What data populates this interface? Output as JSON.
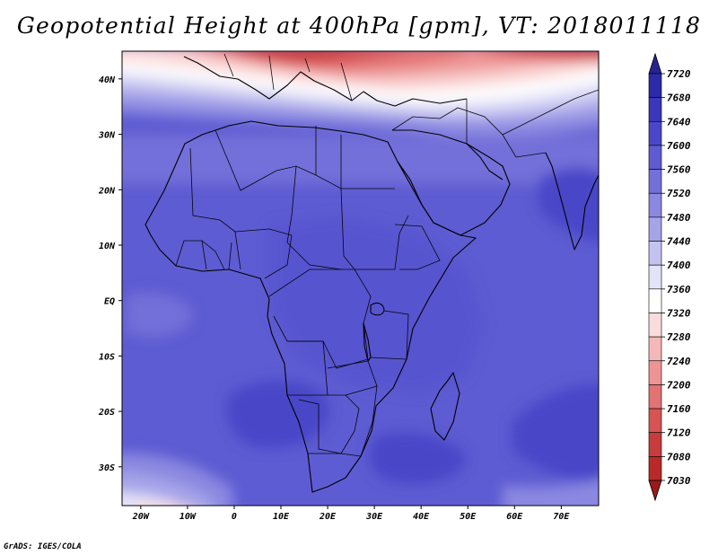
{
  "title": "Geopotential Height at 400hPa [gpm], VT: 2018011118",
  "credit": "GrADS: IGES/COLA",
  "map": {
    "lon_range": [
      -24,
      78
    ],
    "lat_range": [
      -37,
      45
    ],
    "lon_ticks": [
      {
        "value": -20,
        "label": "20W"
      },
      {
        "value": -10,
        "label": "10W"
      },
      {
        "value": 0,
        "label": "0"
      },
      {
        "value": 10,
        "label": "10E"
      },
      {
        "value": 20,
        "label": "20E"
      },
      {
        "value": 30,
        "label": "30E"
      },
      {
        "value": 40,
        "label": "40E"
      },
      {
        "value": 50,
        "label": "50E"
      },
      {
        "value": 60,
        "label": "60E"
      },
      {
        "value": 70,
        "label": "70E"
      }
    ],
    "lat_ticks": [
      {
        "value": 40,
        "label": "40N"
      },
      {
        "value": 30,
        "label": "30N"
      },
      {
        "value": 20,
        "label": "20N"
      },
      {
        "value": 10,
        "label": "10N"
      },
      {
        "value": 0,
        "label": "EQ"
      },
      {
        "value": -10,
        "label": "10S"
      },
      {
        "value": -20,
        "label": "20S"
      },
      {
        "value": -30,
        "label": "30S"
      }
    ]
  },
  "colorbar": {
    "levels": [
      "7720",
      "7680",
      "7640",
      "7600",
      "7560",
      "7520",
      "7480",
      "7440",
      "7400",
      "7360",
      "7320",
      "7280",
      "7240",
      "7200",
      "7160",
      "7120",
      "7080",
      "7030"
    ],
    "colors": [
      "#262391",
      "#2d2aa8",
      "#3a37bb",
      "#4a47c8",
      "#5e5cd2",
      "#7370d9",
      "#8a88e0",
      "#a6a4e8",
      "#c4c3f0",
      "#e4e3f8",
      "#ffffff",
      "#fbdcdc",
      "#f5b8b8",
      "#ee9494",
      "#e27373",
      "#d65454",
      "#c93c3c",
      "#b82a2a",
      "#9c1a1a"
    ]
  }
}
